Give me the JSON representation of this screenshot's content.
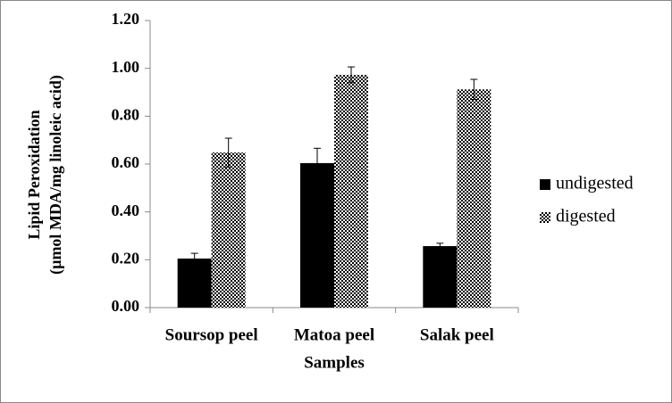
{
  "chart_data": {
    "type": "bar",
    "y_label": [
      "Lipid Peroxidation",
      "(µmol MDA/mg linoleic acid)"
    ],
    "x_label": "Samples",
    "categories": [
      "Soursop peel",
      "Matoa peel",
      "Salak peel"
    ],
    "series": [
      {
        "name": "undigested",
        "color": "#000000",
        "values": [
          0.205,
          0.604,
          0.257
        ],
        "errors": [
          0.022,
          0.062,
          0.012
        ]
      },
      {
        "name": "digested",
        "color": "checker",
        "values": [
          0.648,
          0.973,
          0.912
        ],
        "errors": [
          0.06,
          0.033,
          0.042
        ]
      }
    ],
    "ylim": [
      0,
      1.2
    ],
    "yticks": [
      {
        "value": 0,
        "label": "0.00"
      },
      {
        "value": 0.2,
        "label": "0.20"
      },
      {
        "value": 0.4,
        "label": "0.40"
      },
      {
        "value": 0.6,
        "label": "0.60"
      },
      {
        "value": 0.8,
        "label": "0.80"
      },
      {
        "value": 1.0,
        "label": "1.00"
      },
      {
        "value": 1.2,
        "label": "1.20"
      }
    ],
    "grid": false,
    "legend": "right"
  }
}
